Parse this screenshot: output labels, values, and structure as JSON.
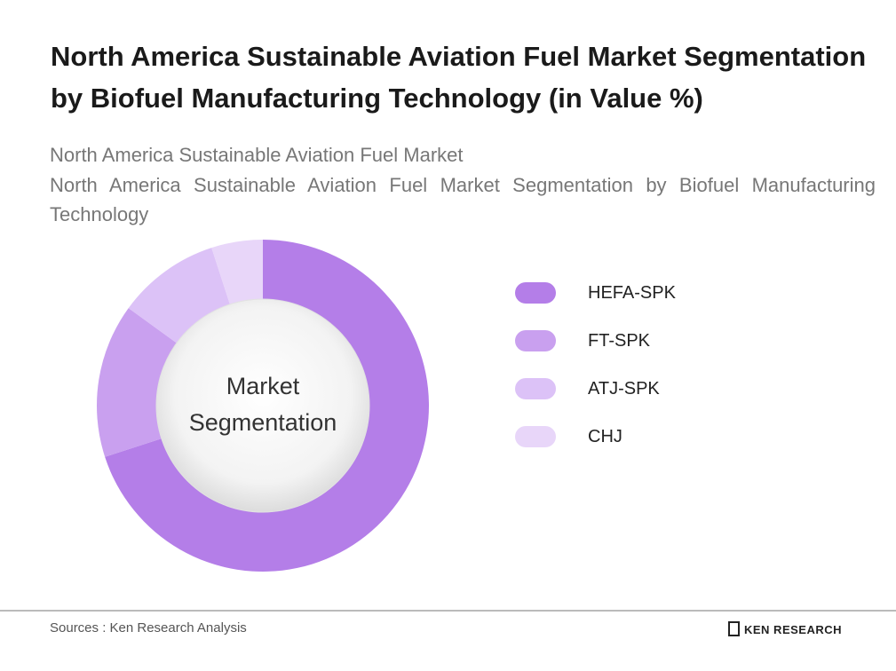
{
  "chart_data": {
    "type": "pie",
    "title": "North America Sustainable Aviation Fuel Market Segmentation by Biofuel Manufacturing Technology (in Value %)",
    "subtitle": "North America Sustainable Aviation Fuel Market",
    "description": "North America Sustainable Aviation Fuel Market Segmentation by Biofuel Manufacturing Technology",
    "center_label": "Market Segmentation",
    "categories": [
      "HEFA-SPK",
      "FT-SPK",
      "ATJ-SPK",
      "CHJ"
    ],
    "values": [
      70,
      15,
      10,
      5
    ],
    "colors": [
      "#b47ee8",
      "#c9a0ef",
      "#dcc2f7",
      "#e8d6f9"
    ],
    "source": "Sources : Ken Research Analysis",
    "brand": "KEN RESEARCH"
  }
}
